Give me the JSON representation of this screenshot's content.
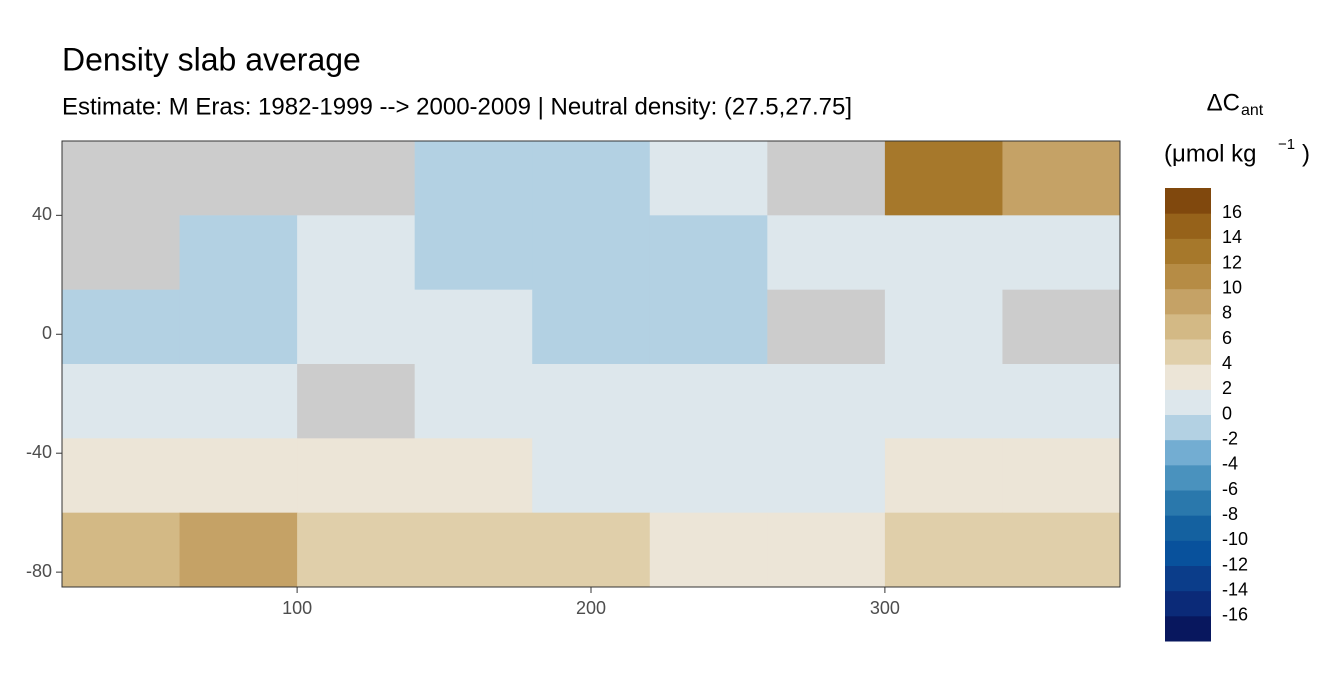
{
  "chart_data": {
    "type": "heatmap",
    "title": "Density slab average",
    "subtitle": "Estimate: M Eras: 1982-1999 --> 2000-2009 | Neutral density: (27.5,27.75]",
    "x": [
      20,
      60,
      100,
      140,
      180,
      220,
      260,
      300,
      340,
      380
    ],
    "y": [
      65,
      40,
      15,
      -10,
      -35,
      -60,
      -85
    ],
    "values": [
      [
        null,
        null,
        null,
        -1,
        -1,
        0.5,
        null,
        12,
        8
      ],
      [
        null,
        -1,
        1,
        -1,
        -1,
        -1,
        1,
        1,
        1
      ],
      [
        -1,
        -1,
        1,
        1,
        -1,
        -1,
        null,
        1,
        null
      ],
      [
        1,
        1,
        null,
        1,
        1,
        1,
        1,
        1,
        1
      ],
      [
        3,
        3,
        2,
        2,
        1,
        1,
        1,
        3,
        3
      ],
      [
        7,
        8,
        5,
        4,
        5,
        3,
        3,
        5,
        4
      ]
    ],
    "na_color": "#cccccc",
    "xlim": [
      20,
      380
    ],
    "ylim": [
      -85,
      65
    ],
    "xticks": [
      100,
      200,
      300
    ],
    "yticks": [
      40,
      0,
      -40,
      -80
    ],
    "legend": {
      "title": "ΔC",
      "title_sub": "ant",
      "unit": "(μmol kg",
      "unit_sup": "−1",
      "unit_close": ")",
      "breaks": [
        -18,
        -16,
        -14,
        -12,
        -10,
        -8,
        -6,
        -4,
        -2,
        0,
        2,
        4,
        6,
        8,
        10,
        12,
        14,
        16,
        18
      ],
      "colors": [
        "#08175e",
        "#0b2a78",
        "#0b3d8a",
        "#08519c",
        "#1461a0",
        "#2a78ac",
        "#4a92be",
        "#73add2",
        "#b3d1e3",
        "#dde7ec",
        "#ece5d7",
        "#e0cfaa",
        "#d3b985",
        "#c5a266",
        "#b68c45",
        "#a6782b",
        "#96621a",
        "#80480d",
        "#661c00"
      ],
      "labels": [
        16,
        14,
        12,
        10,
        8,
        6,
        4,
        2,
        0,
        -2,
        -4,
        -6,
        -8,
        -10,
        -12,
        -14,
        -16
      ]
    }
  }
}
